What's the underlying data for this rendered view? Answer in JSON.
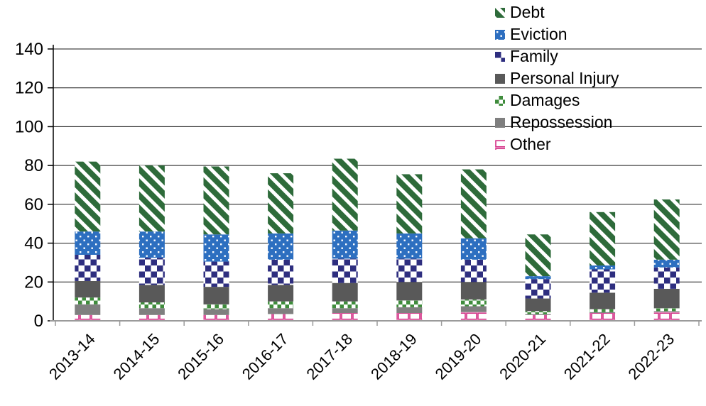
{
  "chart_data": {
    "type": "bar",
    "stacked": true,
    "title": "",
    "xlabel": "",
    "ylabel": "",
    "grid": true,
    "ylim": [
      0,
      140
    ],
    "yticks": [
      0,
      20,
      40,
      60,
      80,
      100,
      120,
      140
    ],
    "categories": [
      "2013-14",
      "2014-15",
      "2015-16",
      "2016-17",
      "2017-18",
      "2018-19",
      "2019-20",
      "2020-21",
      "2021-22",
      "2022-23"
    ],
    "series": [
      {
        "name": "Other",
        "color": "#d63a8c",
        "pattern": "brick-outline",
        "values": [
          3,
          3,
          3,
          3.5,
          4,
          4,
          4.5,
          3,
          4,
          4.5
        ]
      },
      {
        "name": "Repossession",
        "color": "#7f7f7f",
        "pattern": "solid",
        "values": [
          5.5,
          3.5,
          3,
          3,
          2.5,
          3,
          3,
          0.5,
          0.5,
          0.5
        ]
      },
      {
        "name": "Damages",
        "color": "#3f8c3c",
        "pattern": "small-checker",
        "values": [
          3.5,
          3,
          2.5,
          3.5,
          3.5,
          3.5,
          3.5,
          1.5,
          1.5,
          1.5
        ]
      },
      {
        "name": "Personal Injury",
        "color": "#595959",
        "pattern": "solid",
        "values": [
          8.5,
          9,
          9,
          8.5,
          9.5,
          9.5,
          9,
          6.5,
          8.5,
          10
        ]
      },
      {
        "name": "Family",
        "color": "#2e2e7f",
        "pattern": "checker",
        "values": [
          13.5,
          14,
          13,
          13,
          12.5,
          12,
          11.5,
          10,
          12,
          11
        ]
      },
      {
        "name": "Eviction",
        "color": "#2d6fc0",
        "pattern": "dots",
        "values": [
          12,
          13.5,
          14,
          13.5,
          14.5,
          13,
          11,
          1.5,
          2,
          4
        ]
      },
      {
        "name": "Debt",
        "color": "#2e6b3a",
        "pattern": "diagonal-stripes",
        "values": [
          36,
          34,
          35,
          31,
          37,
          30.5,
          35.5,
          21.5,
          27.5,
          31
        ]
      }
    ],
    "totals": [
      82,
      80,
      79.5,
      76,
      83.5,
      75.5,
      78,
      44.5,
      56,
      62.5
    ],
    "legend": {
      "position": "top-right",
      "order": [
        "Debt",
        "Eviction",
        "Family",
        "Personal Injury",
        "Damages",
        "Repossession",
        "Other"
      ]
    },
    "axis_colors": {
      "gridline": "#1a1a1a",
      "y_axis": "#000000",
      "x_axis": "#9b9b9b",
      "tick_label": "#000000"
    }
  }
}
